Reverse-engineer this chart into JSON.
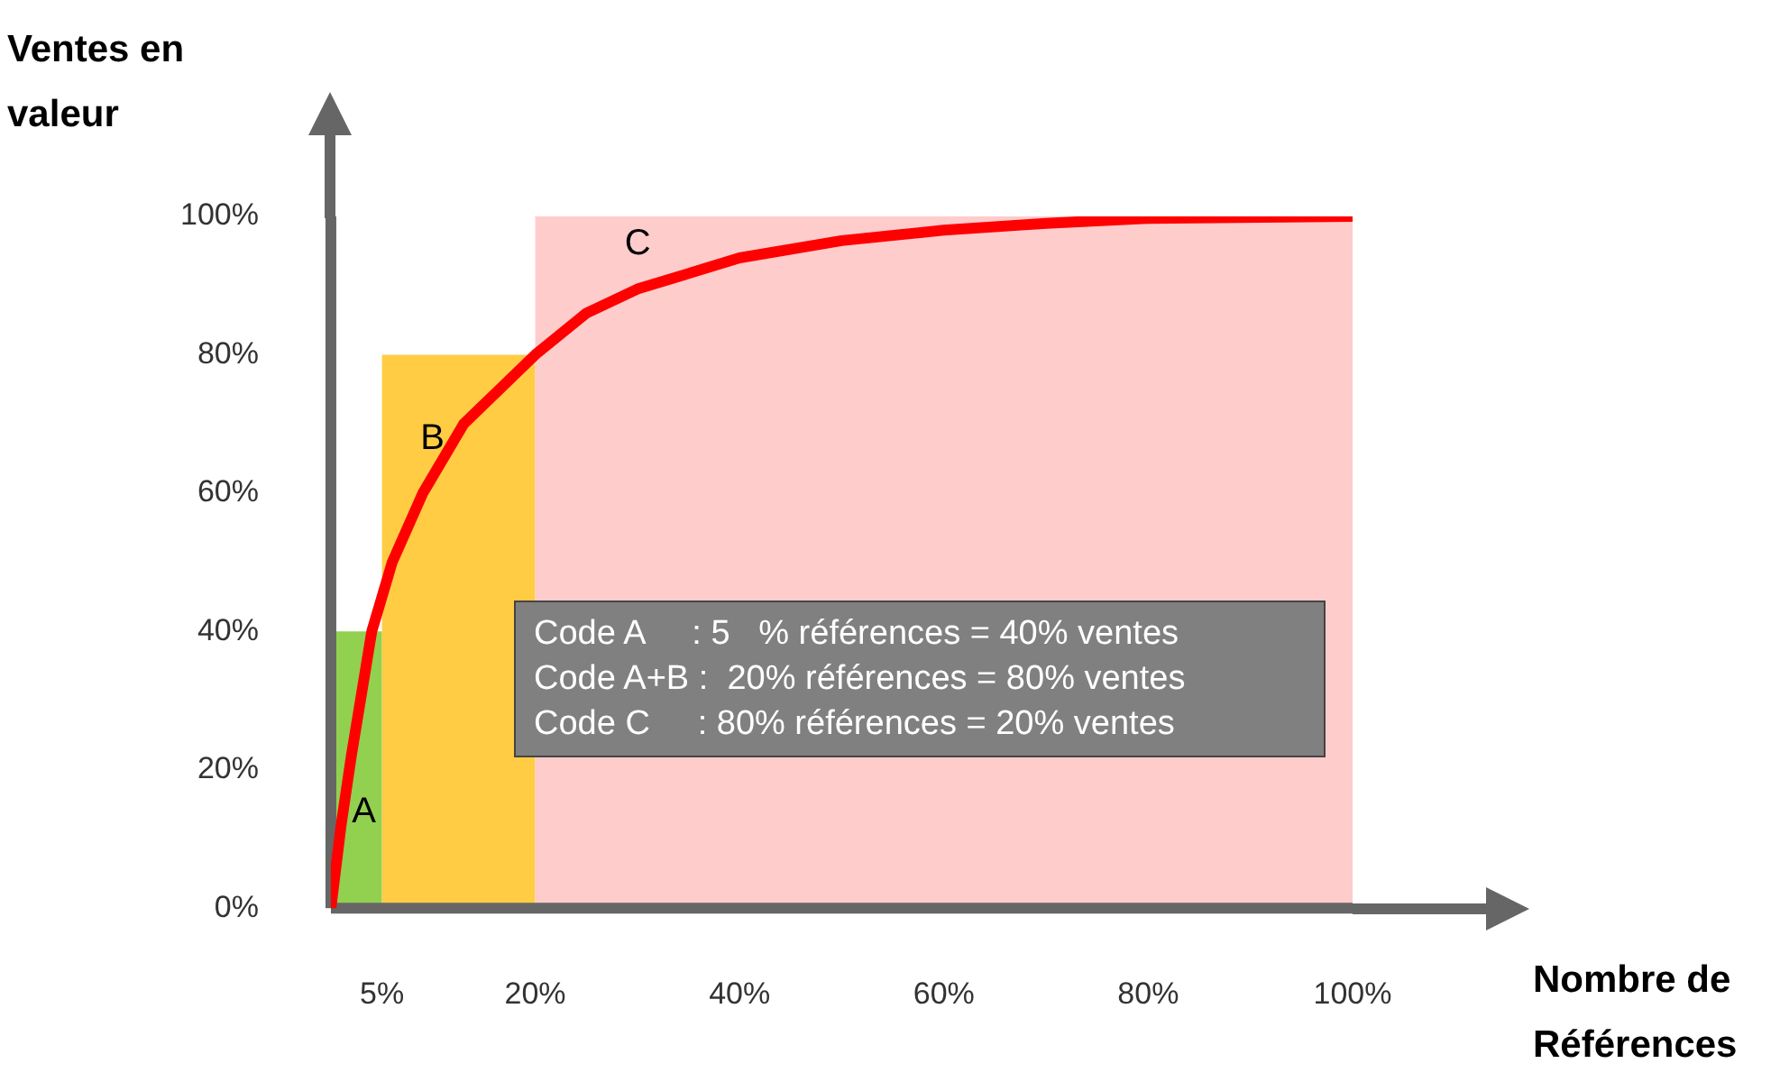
{
  "chart_data": {
    "type": "histogram",
    "xlabel": "Nombre de Références",
    "ylabel": "Ventes en valeur",
    "xlim": [
      0,
      100
    ],
    "ylim": [
      0,
      100
    ],
    "xticks": [
      {
        "value": 5,
        "label": "5%"
      },
      {
        "value": 20,
        "label": "20%"
      },
      {
        "value": 40,
        "label": "40%"
      },
      {
        "value": 60,
        "label": "60%"
      },
      {
        "value": 80,
        "label": "80%"
      },
      {
        "value": 100,
        "label": "100%"
      }
    ],
    "yticks": [
      {
        "value": 0,
        "label": "0%"
      },
      {
        "value": 20,
        "label": "20%"
      },
      {
        "value": 40,
        "label": "40%"
      },
      {
        "value": 60,
        "label": "60%"
      },
      {
        "value": 80,
        "label": "80%"
      },
      {
        "value": 100,
        "label": "100%"
      }
    ],
    "grid": false,
    "legend": false,
    "bins": [
      0,
      5,
      20,
      100
    ],
    "values": [
      40,
      80,
      100
    ],
    "colors": [
      "#92d050",
      "#ffcc44",
      "#ffcccc"
    ],
    "series": [
      {
        "type": "line",
        "color": "#ff0000",
        "x": [
          0,
          1,
          2,
          4,
          6,
          9,
          13,
          20,
          25,
          30,
          40,
          50,
          60,
          70,
          80,
          100
        ],
        "values": [
          0,
          12,
          22,
          40,
          50,
          60,
          70,
          80,
          86,
          89.5,
          94,
          96.5,
          98,
          99,
          99.7,
          100
        ]
      }
    ],
    "annotations": [
      "A",
      "B",
      "C",
      "Code A     : 5   % références = 40% ventes",
      "Code A+B :  20% références = 80% ventes",
      "Code C     : 80% références = 20% ventes"
    ]
  }
}
